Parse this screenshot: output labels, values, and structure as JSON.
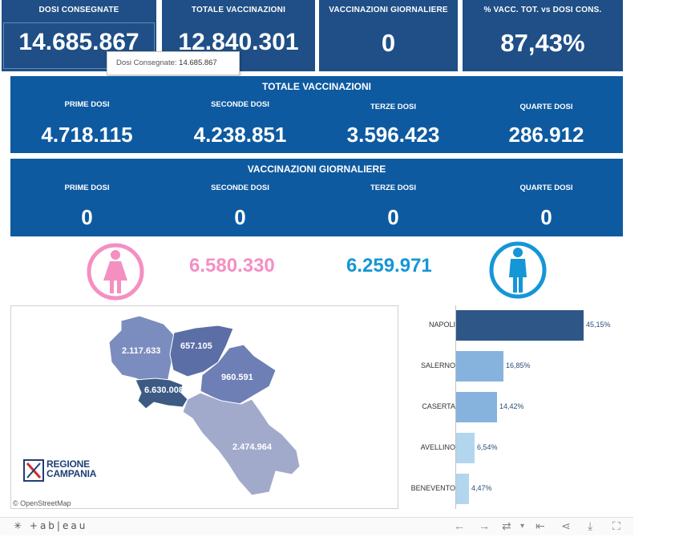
{
  "kpis": [
    {
      "label": "DOSI  CONSEGNATE",
      "value": "14.685.867"
    },
    {
      "label": "TOTALE VACCINAZIONI",
      "value": "12.840.301"
    },
    {
      "label": "VACCINAZIONI GIORNALIERE",
      "value": "0"
    },
    {
      "label": "% VACC. TOT. vs DOSI CONS.",
      "value": "87,43%"
    }
  ],
  "tooltip": {
    "label": "Dosi Consegnate:",
    "value": "14.685.867"
  },
  "totale": {
    "title": "TOTALE VACCINAZIONI",
    "cols": [
      {
        "label": "PRIME DOSI",
        "value": "4.718.115"
      },
      {
        "label": "SECONDE DOSI",
        "value": "4.238.851"
      },
      {
        "label": "TERZE DOSI",
        "value": "3.596.423"
      },
      {
        "label": "QUARTE DOSI",
        "value": "286.912"
      }
    ]
  },
  "giornaliere": {
    "title": "VACCINAZIONI GIORNALIERE",
    "cols": [
      {
        "label": "PRIME DOSI",
        "value": "0"
      },
      {
        "label": "SECONDE DOSI",
        "value": "0"
      },
      {
        "label": "TERZE DOSI",
        "value": "0"
      },
      {
        "label": "QUARTE DOSI",
        "value": "0"
      }
    ]
  },
  "gender": {
    "female_value": "6.580.330",
    "male_value": "6.259.971",
    "female_color": "#f48fc2",
    "male_color": "#1596d6"
  },
  "map": {
    "regions": [
      {
        "name": "caserta",
        "value": "2.117.633"
      },
      {
        "name": "benevento",
        "value": "657.105"
      },
      {
        "name": "avellino",
        "value": "960.591"
      },
      {
        "name": "napoli",
        "value": "6.630.008"
      },
      {
        "name": "salerno",
        "value": "2.474.964"
      }
    ],
    "logo_line1": "REGIONE",
    "logo_line2": "CAMPANIA",
    "attribution": "© OpenStreetMap"
  },
  "chart_data": {
    "type": "bar",
    "orientation": "horizontal",
    "categories": [
      "NAPOLI",
      "SALERNO",
      "CASERTA",
      "AVELLINO",
      "BENEVENTO"
    ],
    "values": [
      45.15,
      16.85,
      14.42,
      6.54,
      4.47
    ],
    "value_labels": [
      "45,15%",
      "16,85%",
      "14,42%",
      "6,54%",
      "4,47%"
    ],
    "colors": [
      "#2e5687",
      "#86b3dd",
      "#86b3dd",
      "#b3d6ef",
      "#b3d6ef"
    ],
    "xlim": [
      0,
      45.15
    ]
  },
  "toolbar": {
    "brand": "+ab|eau"
  }
}
